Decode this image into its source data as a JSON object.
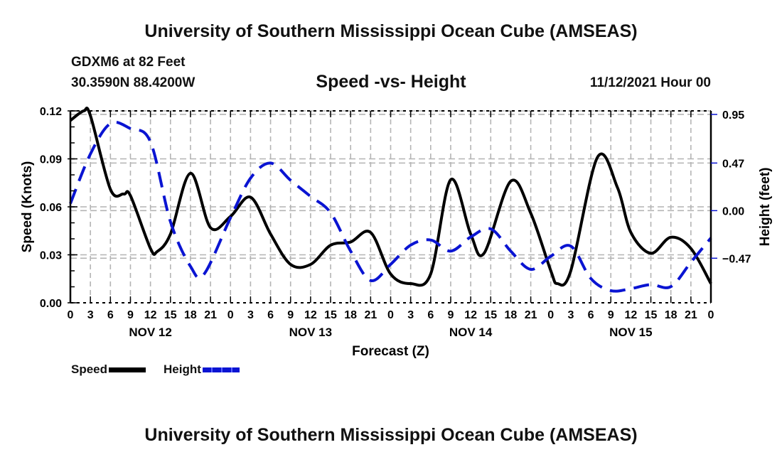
{
  "header": {
    "title": "University of Southern Mississippi Ocean Cube (AMSEAS)",
    "station": "GDXM6 at 82 Feet",
    "coordinates": "30.3590N  88.4200W",
    "subtitle": "Speed -vs- Height",
    "datetime": "11/12/2021 Hour 00"
  },
  "footer": {
    "title": "University of Southern Mississippi Ocean Cube (AMSEAS)"
  },
  "colors": {
    "speed": "#000000",
    "height": "#0a14d2",
    "grid": "#b4b4b4"
  },
  "chart_data": {
    "type": "line",
    "title": "Speed -vs- Height",
    "xlabel": "Forecast (Z)",
    "ylabel": "Speed (Knots)",
    "y2label": "Height (feet)",
    "xlim": [
      0,
      96
    ],
    "ylim": [
      0,
      0.12
    ],
    "y2lim": [
      -0.91,
      0.985
    ],
    "grid": true,
    "x_tick_labels": [
      "0",
      "3",
      "6",
      "9",
      "12",
      "15",
      "18",
      "21",
      "0",
      "3",
      "6",
      "9",
      "12",
      "15",
      "18",
      "21",
      "0",
      "3",
      "6",
      "9",
      "12",
      "15",
      "18",
      "21",
      "0",
      "3",
      "6",
      "9",
      "12",
      "15",
      "18",
      "21",
      "0"
    ],
    "day_labels": [
      {
        "label": "NOV 12",
        "hour": 12
      },
      {
        "label": "NOV 13",
        "hour": 36
      },
      {
        "label": "NOV 14",
        "hour": 60
      },
      {
        "label": "NOV 15",
        "hour": 84
      }
    ],
    "y_ticks": [
      0.0,
      0.03,
      0.06,
      0.09,
      0.12
    ],
    "y_tick_labels": [
      "0.00",
      "0.03",
      "0.06",
      "0.09",
      "0.12"
    ],
    "y2_ticks": [
      0.95,
      0.47,
      0.0,
      -0.47
    ],
    "y2_tick_labels": [
      "0.95",
      "0.47",
      "0.00",
      "−0.47"
    ],
    "legend": [
      {
        "name": "Speed",
        "style": "solid"
      },
      {
        "name": "Height",
        "style": "dashed"
      }
    ],
    "legend_position": "bottom-left",
    "series": [
      {
        "name": "Speed",
        "axis": "left",
        "x": [
          0,
          2,
          3,
          6,
          8,
          9,
          12,
          13,
          15,
          18,
          21,
          24,
          27,
          30,
          33,
          36,
          39,
          42,
          45,
          48,
          51,
          54,
          57,
          60,
          62,
          66,
          69,
          72,
          73,
          75,
          79,
          82,
          84,
          87,
          90,
          93,
          96
        ],
        "values": [
          0.114,
          0.12,
          0.117,
          0.071,
          0.068,
          0.067,
          0.034,
          0.032,
          0.043,
          0.081,
          0.047,
          0.054,
          0.066,
          0.043,
          0.024,
          0.024,
          0.036,
          0.038,
          0.044,
          0.018,
          0.012,
          0.018,
          0.077,
          0.043,
          0.031,
          0.076,
          0.056,
          0.02,
          0.012,
          0.02,
          0.091,
          0.072,
          0.044,
          0.031,
          0.041,
          0.034,
          0.012
        ]
      },
      {
        "name": "Height",
        "axis": "right",
        "x": [
          0,
          3,
          6,
          9,
          12,
          15,
          18,
          20,
          24,
          27,
          30,
          33,
          36,
          39,
          42,
          45,
          48,
          51,
          54,
          57,
          60,
          63,
          66,
          69,
          72,
          75,
          78,
          81,
          84,
          87,
          90,
          93,
          96
        ],
        "values": [
          0.07,
          0.56,
          0.86,
          0.81,
          0.68,
          -0.11,
          -0.55,
          -0.63,
          -0.07,
          0.32,
          0.47,
          0.3,
          0.14,
          -0.02,
          -0.4,
          -0.69,
          -0.53,
          -0.34,
          -0.29,
          -0.4,
          -0.26,
          -0.18,
          -0.4,
          -0.58,
          -0.45,
          -0.35,
          -0.67,
          -0.79,
          -0.77,
          -0.73,
          -0.75,
          -0.51,
          -0.27
        ]
      }
    ]
  }
}
